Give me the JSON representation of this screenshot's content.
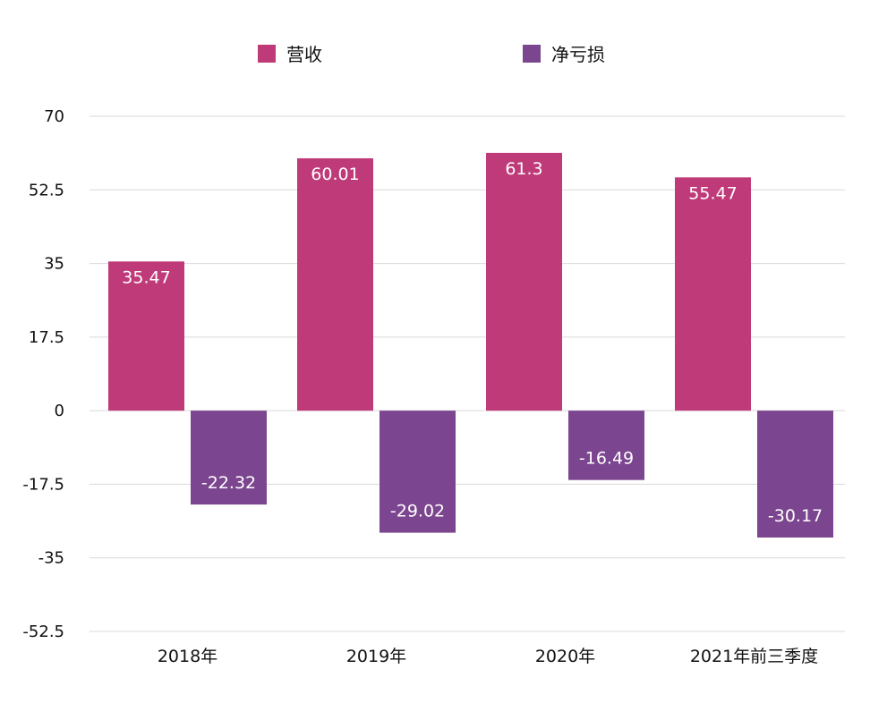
{
  "chart_data": {
    "type": "bar",
    "categories": [
      "2018年",
      "2019年",
      "2020年",
      "2021年前三季度"
    ],
    "series": [
      {
        "name": "营收",
        "values": [
          35.47,
          60.01,
          61.3,
          55.47
        ],
        "color": "#bf3a78"
      },
      {
        "name": "净亏损",
        "values": [
          -22.32,
          -29.02,
          -16.49,
          -30.17
        ],
        "color": "#7b458f"
      }
    ],
    "data_labels": [
      [
        "35.47",
        "60.01",
        "61.3",
        "55.47"
      ],
      [
        "-22.32",
        "-29.02",
        "-16.49",
        "-30.17"
      ]
    ],
    "yticks": [
      "70",
      "52.5",
      "35",
      "17.5",
      "0",
      "-17.5",
      "-35",
      "-52.5"
    ],
    "ytick_values": [
      70,
      52.5,
      35,
      17.5,
      0,
      -17.5,
      -35,
      -52.5
    ],
    "ylim": [
      -52.5,
      70
    ],
    "grid": true,
    "legend_position": "top-center",
    "gridline_color": "#d9d9d9",
    "label_color": "#ffffff"
  }
}
